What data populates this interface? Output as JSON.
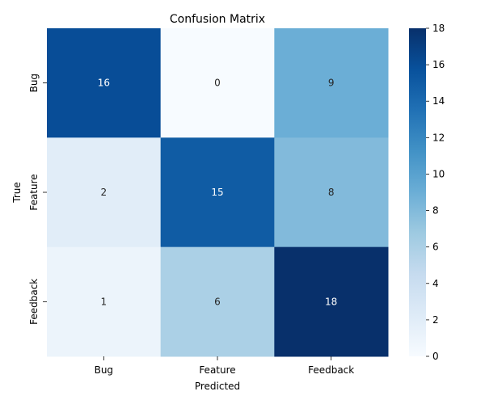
{
  "chart_data": {
    "type": "heatmap",
    "title": "Confusion Matrix",
    "xlabel": "Predicted",
    "ylabel": "True",
    "x_categories": [
      "Bug",
      "Feature",
      "Feedback"
    ],
    "y_categories": [
      "Bug",
      "Feature",
      "Feedback"
    ],
    "values": [
      [
        16,
        0,
        9
      ],
      [
        2,
        15,
        8
      ],
      [
        1,
        6,
        18
      ]
    ],
    "colorbar": {
      "min": 0,
      "max": 18,
      "ticks": [
        0,
        2,
        4,
        6,
        8,
        10,
        12,
        14,
        16,
        18
      ],
      "colormap": "Blues"
    },
    "annotations": true
  }
}
